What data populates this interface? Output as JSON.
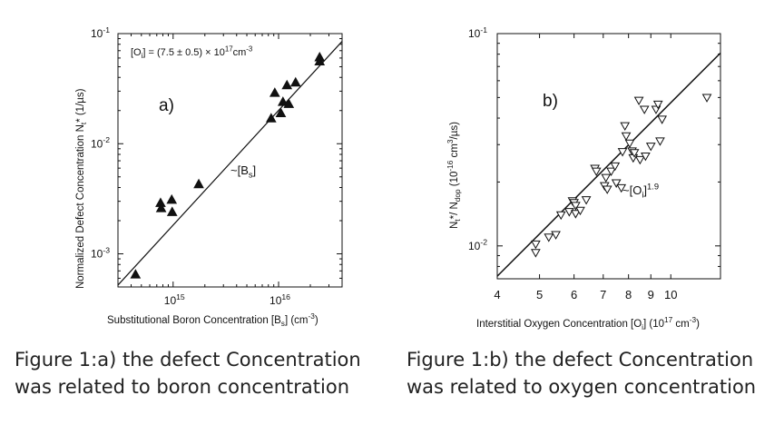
{
  "chart_data": [
    {
      "type": "scatter",
      "panel_label": "a)",
      "xlabel": "Substitutional Boron Concentration [B",
      "xlabel_sub": "s",
      "xlabel_unit": "] (cm",
      "xlabel_unit_sup": "-3",
      "xlabel_end": ")",
      "ylabel": "Normalized Defect Concentration N",
      "ylabel_sub": "t",
      "ylabel_end": "* (1/µs)",
      "x_scale": "log",
      "y_scale": "log",
      "xlim": [
        300000000000000.0,
        4e+16
      ],
      "ylim": [
        0.0005,
        0.1
      ],
      "x_ticks": [
        {
          "value": 1000000000000000.0,
          "base": "10",
          "exp": "15"
        },
        {
          "value": 1e+16,
          "base": "10",
          "exp": "16"
        }
      ],
      "y_ticks": [
        {
          "value": 0.001,
          "base": "10",
          "exp": "-3"
        },
        {
          "value": 0.01,
          "base": "10",
          "exp": "-2"
        },
        {
          "value": 0.1,
          "base": "10",
          "exp": "-1"
        }
      ],
      "annotation_top": "[O",
      "annotation_top_sub": "i",
      "annotation_top_mid": "] = (7.5 ± 0.5) × 10",
      "annotation_top_sup": "17",
      "annotation_top_unit": "cm",
      "annotation_top_unit_sup": "-3",
      "fit_label": "~[B",
      "fit_label_sub": "s",
      "fit_label_end": "]",
      "marker": "filled-triangle",
      "points": [
        {
          "x": 440000000000000.0,
          "y": 0.00065
        },
        {
          "x": 760000000000000.0,
          "y": 0.0029
        },
        {
          "x": 770000000000000.0,
          "y": 0.0026
        },
        {
          "x": 970000000000000.0,
          "y": 0.0031
        },
        {
          "x": 980000000000000.0,
          "y": 0.0024
        },
        {
          "x": 1750000000000000.0,
          "y": 0.0043
        },
        {
          "x": 8500000000000000.0,
          "y": 0.017
        },
        {
          "x": 9200000000000000.0,
          "y": 0.029
        },
        {
          "x": 1.05e+16,
          "y": 0.019
        },
        {
          "x": 1.1e+16,
          "y": 0.024
        },
        {
          "x": 1.2e+16,
          "y": 0.034
        },
        {
          "x": 1.25e+16,
          "y": 0.023
        },
        {
          "x": 1.45e+16,
          "y": 0.036
        },
        {
          "x": 2.45e+16,
          "y": 0.061
        },
        {
          "x": 2.45e+16,
          "y": 0.056
        }
      ],
      "fit": {
        "x": [
          300000000000000.0,
          4e+16
        ],
        "y": [
          0.00052,
          0.085
        ]
      }
    },
    {
      "type": "scatter",
      "panel_label": "b)",
      "xlabel": "Interstitial Oxygen Concentration [O",
      "xlabel_sub": "i",
      "xlabel_unit": "] (10",
      "xlabel_unit_sup": "17",
      "xlabel_end": " cm",
      "xlabel_end_sup": "-3",
      "xlabel_close": ")",
      "ylabel": "N",
      "ylabel_sub": "t",
      "ylabel_mid": "*/ N",
      "ylabel_sub2": "dop",
      "ylabel_unit": "  (10",
      "ylabel_unit_sup": "-16",
      "ylabel_unit2": " cm",
      "ylabel_unit2_sup": "3",
      "ylabel_end": "/µs)",
      "x_scale": "log",
      "y_scale": "log",
      "xlim": [
        4,
        13
      ],
      "ylim": [
        0.007,
        0.1
      ],
      "x_ticks": [
        {
          "value": 4,
          "label": "4"
        },
        {
          "value": 5,
          "label": "5"
        },
        {
          "value": 6,
          "label": "6"
        },
        {
          "value": 7,
          "label": "7"
        },
        {
          "value": 8,
          "label": "8"
        },
        {
          "value": 9,
          "label": "9"
        },
        {
          "value": 10,
          "label": "10"
        }
      ],
      "y_ticks": [
        {
          "value": 0.01,
          "base": "10",
          "exp": "-2"
        },
        {
          "value": 0.1,
          "base": "10",
          "exp": "-1"
        }
      ],
      "fit_label": "~[O",
      "fit_label_sub": "i",
      "fit_label_end": "]",
      "fit_label_sup": "1.9",
      "marker": "open-triangle-down",
      "points": [
        {
          "x": 4.9,
          "y": 0.0093
        },
        {
          "x": 4.9,
          "y": 0.0102
        },
        {
          "x": 5.25,
          "y": 0.011
        },
        {
          "x": 5.45,
          "y": 0.0113
        },
        {
          "x": 5.6,
          "y": 0.014
        },
        {
          "x": 5.85,
          "y": 0.0145
        },
        {
          "x": 5.95,
          "y": 0.0163
        },
        {
          "x": 6.0,
          "y": 0.016
        },
        {
          "x": 6.05,
          "y": 0.0155
        },
        {
          "x": 6.05,
          "y": 0.0142
        },
        {
          "x": 6.2,
          "y": 0.0147
        },
        {
          "x": 6.4,
          "y": 0.0165
        },
        {
          "x": 6.7,
          "y": 0.0232
        },
        {
          "x": 6.75,
          "y": 0.0225
        },
        {
          "x": 7.05,
          "y": 0.0192
        },
        {
          "x": 7.1,
          "y": 0.021
        },
        {
          "x": 7.15,
          "y": 0.0185
        },
        {
          "x": 7.3,
          "y": 0.0225
        },
        {
          "x": 7.45,
          "y": 0.0238
        },
        {
          "x": 7.5,
          "y": 0.0198
        },
        {
          "x": 7.7,
          "y": 0.0188
        },
        {
          "x": 7.75,
          "y": 0.0278
        },
        {
          "x": 7.85,
          "y": 0.0368
        },
        {
          "x": 7.9,
          "y": 0.033
        },
        {
          "x": 8.05,
          "y": 0.0305
        },
        {
          "x": 8.15,
          "y": 0.028
        },
        {
          "x": 8.2,
          "y": 0.026
        },
        {
          "x": 8.25,
          "y": 0.0275
        },
        {
          "x": 8.45,
          "y": 0.0485
        },
        {
          "x": 8.5,
          "y": 0.0255
        },
        {
          "x": 8.7,
          "y": 0.044
        },
        {
          "x": 8.75,
          "y": 0.0265
        },
        {
          "x": 9.0,
          "y": 0.0295
        },
        {
          "x": 9.25,
          "y": 0.044
        },
        {
          "x": 9.35,
          "y": 0.0465
        },
        {
          "x": 9.45,
          "y": 0.0312
        },
        {
          "x": 9.55,
          "y": 0.0395
        },
        {
          "x": 12.1,
          "y": 0.05
        }
      ],
      "fit": {
        "x": [
          4,
          13
        ],
        "y": [
          0.0072,
          0.081
        ]
      }
    }
  ],
  "captions": {
    "a_line1": "Figure 1:a) the defect Concentration",
    "a_line2": "was related to boron concentration",
    "b_line1": "Figure 1:b) the defect Concentration",
    "b_line2": "was related to oxygen concentration"
  }
}
